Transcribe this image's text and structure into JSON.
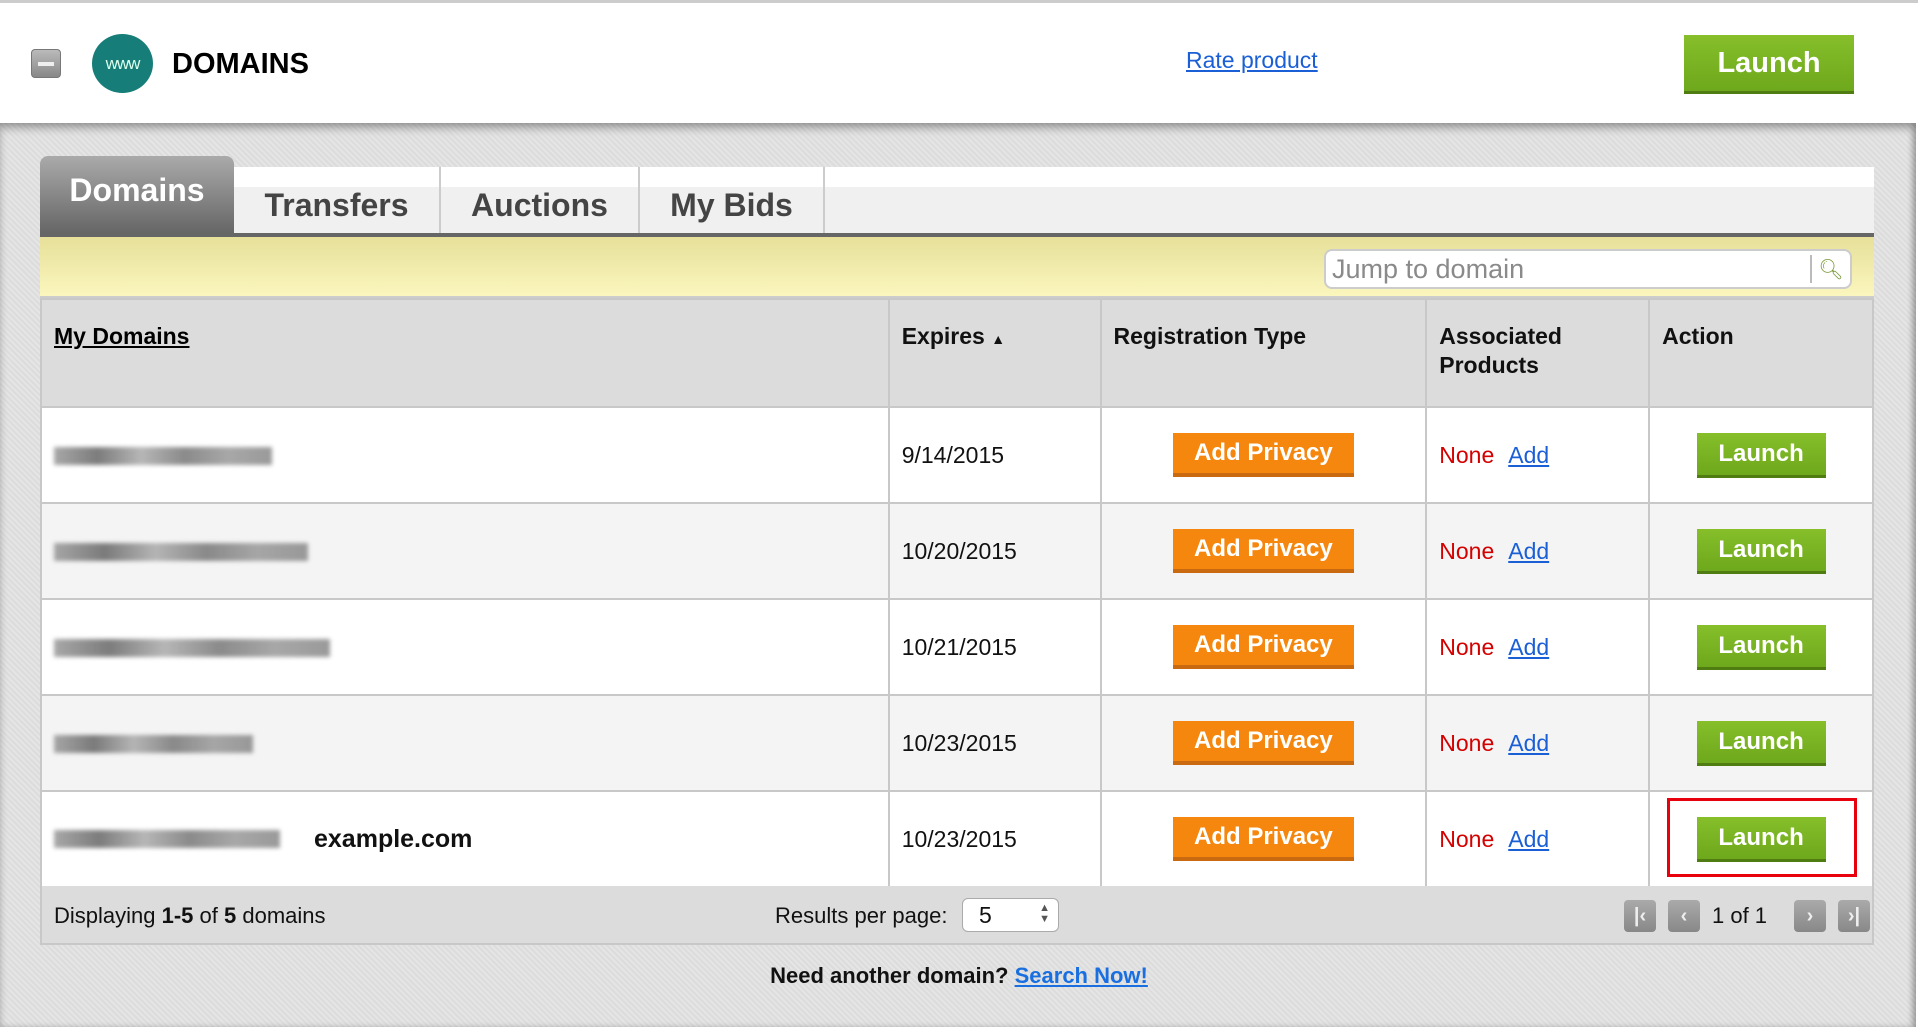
{
  "header": {
    "title": "DOMAINS",
    "logo_text": "www",
    "rate_link": "Rate product",
    "launch": "Launch"
  },
  "tabs": [
    {
      "label": "Domains",
      "active": true
    },
    {
      "label": "Transfers"
    },
    {
      "label": "Auctions"
    },
    {
      "label": "My Bids"
    }
  ],
  "search": {
    "placeholder": "Jump to domain",
    "icon": "search-icon"
  },
  "table": {
    "columns": [
      "My Domains",
      "Expires",
      "Registration Type",
      "Associated Products",
      "Action"
    ],
    "sort_indicator": "▲",
    "rows": [
      {
        "domain": "",
        "annotation": "",
        "expires": "9/14/2015",
        "registration": "Add Privacy",
        "products": "None",
        "products_link": "Add",
        "action": "Launch"
      },
      {
        "domain": "",
        "annotation": "",
        "expires": "10/20/2015",
        "registration": "Add Privacy",
        "products": "None",
        "products_link": "Add",
        "action": "Launch"
      },
      {
        "domain": "",
        "annotation": "",
        "expires": "10/21/2015",
        "registration": "Add Privacy",
        "products": "None",
        "products_link": "Add",
        "action": "Launch"
      },
      {
        "domain": "",
        "annotation": "",
        "expires": "10/23/2015",
        "registration": "Add Privacy",
        "products": "None",
        "products_link": "Add",
        "action": "Launch"
      },
      {
        "domain": "",
        "annotation": "example.com",
        "expires": "10/23/2015",
        "registration": "Add Privacy",
        "products": "None",
        "products_link": "Add",
        "action": "Launch",
        "highlighted": true
      }
    ]
  },
  "footer": {
    "displaying_prefix": "Displaying ",
    "range": "1-5",
    "of": " of ",
    "total": "5",
    "suffix": " domains",
    "results_per_page_label": "Results per page:",
    "results_per_page": "5",
    "pagination": "1 of 1"
  },
  "bottom": {
    "text": "Need another domain? ",
    "link": "Search Now!"
  },
  "colors": {
    "launch_green": "#7cb526",
    "privacy_orange": "#f5870f",
    "none_red": "#d40000",
    "link_blue": "#1a5fd6",
    "highlight_red": "#e8000d"
  }
}
